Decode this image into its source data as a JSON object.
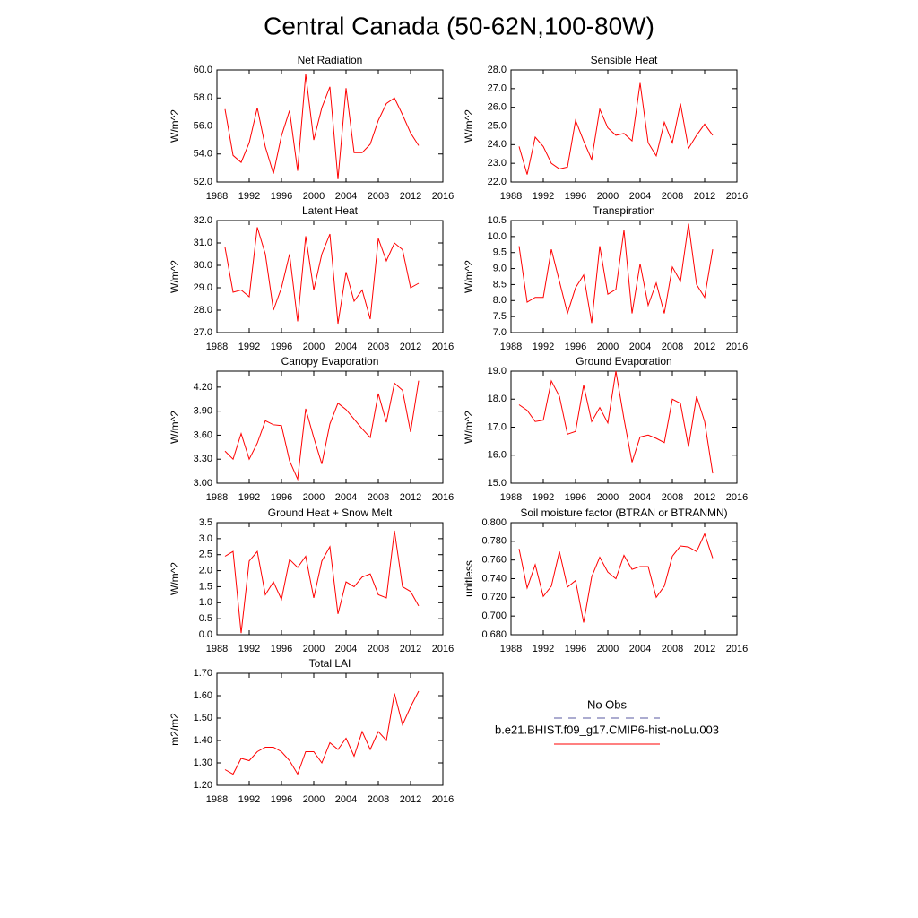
{
  "title": "Central Canada (50-62N,100-80W)",
  "legend": [
    {
      "name": "No Obs",
      "color": "#5a5aa0",
      "dashed": true
    },
    {
      "name": "b.e21.BHIST.f09_g17.CMIP6-hist-noLu.003",
      "color": "#ff0000",
      "dashed": false
    }
  ],
  "chart_data": [
    {
      "type": "line",
      "title": "Net Radiation",
      "ylabel": "W/m^2",
      "x": [
        1989,
        1990,
        1991,
        1992,
        1993,
        1994,
        1995,
        1996,
        1997,
        1998,
        1999,
        2000,
        2001,
        2002,
        2003,
        2004,
        2005,
        2006,
        2007,
        2008,
        2009,
        2010,
        2011,
        2012,
        2013
      ],
      "series": [
        {
          "color": "#ff0000",
          "values": [
            57.2,
            53.9,
            53.4,
            54.8,
            57.3,
            54.5,
            52.6,
            55.3,
            57.1,
            52.8,
            59.7,
            55.0,
            57.3,
            58.8,
            52.2,
            58.7,
            54.1,
            54.1,
            54.7,
            56.4,
            57.6,
            58.0,
            56.8,
            55.5,
            54.6
          ]
        }
      ],
      "xlim": [
        1988,
        2016
      ],
      "xticks": [
        1988,
        1992,
        1996,
        2000,
        2004,
        2008,
        2012,
        2016
      ],
      "ylim": [
        52,
        60
      ],
      "yticks": [
        {
          "value": 52,
          "label": "52.0"
        },
        {
          "value": 54,
          "label": "54.0"
        },
        {
          "value": 56,
          "label": "56.0"
        },
        {
          "value": 58,
          "label": "58.0"
        },
        {
          "value": 60,
          "label": "60.0"
        }
      ]
    },
    {
      "type": "line",
      "title": "Sensible Heat",
      "ylabel": "W/m^2",
      "x": [
        1989,
        1990,
        1991,
        1992,
        1993,
        1994,
        1995,
        1996,
        1997,
        1998,
        1999,
        2000,
        2001,
        2002,
        2003,
        2004,
        2005,
        2006,
        2007,
        2008,
        2009,
        2010,
        2011,
        2012,
        2013
      ],
      "series": [
        {
          "color": "#ff0000",
          "values": [
            23.9,
            22.4,
            24.4,
            23.9,
            23.0,
            22.7,
            22.8,
            25.3,
            24.2,
            23.2,
            25.9,
            24.9,
            24.5,
            24.6,
            24.2,
            27.3,
            24.1,
            23.4,
            25.2,
            24.1,
            26.2,
            23.8,
            24.5,
            25.1,
            24.5
          ]
        }
      ],
      "xlim": [
        1988,
        2016
      ],
      "xticks": [
        1988,
        1992,
        1996,
        2000,
        2004,
        2008,
        2012,
        2016
      ],
      "ylim": [
        22,
        28
      ],
      "yticks": [
        {
          "value": 22,
          "label": "22.0"
        },
        {
          "value": 23,
          "label": "23.0"
        },
        {
          "value": 24,
          "label": "24.0"
        },
        {
          "value": 25,
          "label": "25.0"
        },
        {
          "value": 26,
          "label": "26.0"
        },
        {
          "value": 27,
          "label": "27.0"
        },
        {
          "value": 28,
          "label": "28.0"
        }
      ]
    },
    {
      "type": "line",
      "title": "Latent Heat",
      "ylabel": "W/m^2",
      "x": [
        1989,
        1990,
        1991,
        1992,
        1993,
        1994,
        1995,
        1996,
        1997,
        1998,
        1999,
        2000,
        2001,
        2002,
        2003,
        2004,
        2005,
        2006,
        2007,
        2008,
        2009,
        2010,
        2011,
        2012,
        2013
      ],
      "series": [
        {
          "color": "#ff0000",
          "values": [
            30.8,
            28.8,
            28.9,
            28.6,
            31.7,
            30.5,
            28.0,
            29.0,
            30.5,
            27.5,
            31.3,
            28.9,
            30.5,
            31.4,
            27.4,
            29.7,
            28.4,
            28.9,
            27.6,
            31.2,
            30.2,
            31.0,
            30.7,
            29.0,
            29.2
          ]
        }
      ],
      "xlim": [
        1988,
        2016
      ],
      "xticks": [
        1988,
        1992,
        1996,
        2000,
        2004,
        2008,
        2012,
        2016
      ],
      "ylim": [
        27,
        32
      ],
      "yticks": [
        {
          "value": 27,
          "label": "27.0"
        },
        {
          "value": 28,
          "label": "28.0"
        },
        {
          "value": 29,
          "label": "29.0"
        },
        {
          "value": 30,
          "label": "30.0"
        },
        {
          "value": 31,
          "label": "31.0"
        },
        {
          "value": 32,
          "label": "32.0"
        }
      ]
    },
    {
      "type": "line",
      "title": "Transpiration",
      "ylabel": "W/m^2",
      "x": [
        1989,
        1990,
        1991,
        1992,
        1993,
        1994,
        1995,
        1996,
        1997,
        1998,
        1999,
        2000,
        2001,
        2002,
        2003,
        2004,
        2005,
        2006,
        2007,
        2008,
        2009,
        2010,
        2011,
        2012,
        2013
      ],
      "series": [
        {
          "color": "#ff0000",
          "values": [
            9.7,
            7.95,
            8.1,
            8.1,
            9.6,
            8.6,
            7.6,
            8.4,
            8.8,
            7.3,
            9.7,
            8.2,
            8.35,
            10.2,
            7.6,
            9.15,
            7.85,
            8.55,
            7.6,
            9.05,
            8.6,
            10.4,
            8.5,
            8.1,
            9.6
          ]
        }
      ],
      "xlim": [
        1988,
        2016
      ],
      "xticks": [
        1988,
        1992,
        1996,
        2000,
        2004,
        2008,
        2012,
        2016
      ],
      "ylim": [
        7,
        10.5
      ],
      "yticks": [
        {
          "value": 7,
          "label": "7.0"
        },
        7.5,
        {
          "value": 8,
          "label": "8.0"
        },
        8.5,
        {
          "value": 9,
          "label": "9.0"
        },
        9.5,
        {
          "value": 10,
          "label": "10.0"
        },
        10.5
      ]
    },
    {
      "type": "line",
      "title": "Canopy Evaporation",
      "ylabel": "W/m^2",
      "x": [
        1989,
        1990,
        1991,
        1992,
        1993,
        1994,
        1995,
        1996,
        1997,
        1998,
        1999,
        2000,
        2001,
        2002,
        2003,
        2004,
        2005,
        2006,
        2007,
        2008,
        2009,
        2010,
        2011,
        2012,
        2013
      ],
      "series": [
        {
          "color": "#ff0000",
          "values": [
            3.4,
            3.3,
            3.62,
            3.3,
            3.5,
            3.78,
            3.73,
            3.72,
            3.28,
            3.05,
            3.93,
            3.57,
            3.24,
            3.74,
            4.0,
            3.92,
            3.8,
            3.68,
            3.57,
            4.12,
            3.76,
            4.25,
            4.16,
            3.64,
            4.28
          ]
        }
      ],
      "xlim": [
        1988,
        2016
      ],
      "xticks": [
        1988,
        1992,
        1996,
        2000,
        2004,
        2008,
        2012,
        2016
      ],
      "ylim": [
        3.0,
        4.4
      ],
      "yticks": [
        {
          "value": 3.0,
          "label": "3.00"
        },
        {
          "value": 3.3,
          "label": "3.30"
        },
        {
          "value": 3.6,
          "label": "3.60"
        },
        {
          "value": 3.9,
          "label": "3.90"
        },
        {
          "value": 4.2,
          "label": "4.20"
        }
      ]
    },
    {
      "type": "line",
      "title": "Ground Evaporation",
      "ylabel": "W/m^2",
      "x": [
        1989,
        1990,
        1991,
        1992,
        1993,
        1994,
        1995,
        1996,
        1997,
        1998,
        1999,
        2000,
        2001,
        2002,
        2003,
        2004,
        2005,
        2006,
        2007,
        2008,
        2009,
        2010,
        2011,
        2012,
        2013
      ],
      "series": [
        {
          "color": "#ff0000",
          "values": [
            17.8,
            17.6,
            17.2,
            17.25,
            18.65,
            18.1,
            16.75,
            16.85,
            18.5,
            17.2,
            17.7,
            17.15,
            19.0,
            17.3,
            15.75,
            16.65,
            16.72,
            16.6,
            16.45,
            18.0,
            17.85,
            16.3,
            18.1,
            17.2,
            15.35
          ]
        }
      ],
      "xlim": [
        1988,
        2016
      ],
      "xticks": [
        1988,
        1992,
        1996,
        2000,
        2004,
        2008,
        2012,
        2016
      ],
      "ylim": [
        15,
        19
      ],
      "yticks": [
        {
          "value": 15,
          "label": "15.0"
        },
        {
          "value": 16,
          "label": "16.0"
        },
        {
          "value": 17,
          "label": "17.0"
        },
        {
          "value": 18,
          "label": "18.0"
        },
        {
          "value": 19,
          "label": "19.0"
        }
      ]
    },
    {
      "type": "line",
      "title": "Ground Heat + Snow Melt",
      "ylabel": "W/m^2",
      "x": [
        1989,
        1990,
        1991,
        1992,
        1993,
        1994,
        1995,
        1996,
        1997,
        1998,
        1999,
        2000,
        2001,
        2002,
        2003,
        2004,
        2005,
        2006,
        2007,
        2008,
        2009,
        2010,
        2011,
        2012,
        2013
      ],
      "series": [
        {
          "color": "#ff0000",
          "values": [
            2.45,
            2.6,
            0.05,
            2.3,
            2.6,
            1.25,
            1.65,
            1.1,
            2.35,
            2.1,
            2.45,
            1.15,
            2.3,
            2.75,
            0.65,
            1.65,
            1.5,
            1.8,
            1.9,
            1.25,
            1.15,
            3.25,
            1.5,
            1.35,
            0.9
          ]
        }
      ],
      "xlim": [
        1988,
        2016
      ],
      "xticks": [
        1988,
        1992,
        1996,
        2000,
        2004,
        2008,
        2012,
        2016
      ],
      "ylim": [
        0,
        3.5
      ],
      "yticks": [
        {
          "value": 0,
          "label": "0.0"
        },
        0.5,
        {
          "value": 1,
          "label": "1.0"
        },
        1.5,
        {
          "value": 2,
          "label": "2.0"
        },
        2.5,
        {
          "value": 3,
          "label": "3.0"
        },
        3.5
      ]
    },
    {
      "type": "line",
      "title": "Soil moisture factor (BTRAN or BTRANMN)",
      "ylabel": "unitless",
      "x": [
        1989,
        1990,
        1991,
        1992,
        1993,
        1994,
        1995,
        1996,
        1997,
        1998,
        1999,
        2000,
        2001,
        2002,
        2003,
        2004,
        2005,
        2006,
        2007,
        2008,
        2009,
        2010,
        2011,
        2012,
        2013
      ],
      "series": [
        {
          "color": "#ff0000",
          "values": [
            0.772,
            0.73,
            0.755,
            0.721,
            0.732,
            0.769,
            0.731,
            0.738,
            0.693,
            0.742,
            0.763,
            0.747,
            0.74,
            0.765,
            0.75,
            0.753,
            0.753,
            0.72,
            0.732,
            0.764,
            0.775,
            0.774,
            0.769,
            0.788,
            0.762
          ]
        }
      ],
      "xlim": [
        1988,
        2016
      ],
      "xticks": [
        1988,
        1992,
        1996,
        2000,
        2004,
        2008,
        2012,
        2016
      ],
      "ylim": [
        0.68,
        0.8
      ],
      "yticks": [
        {
          "value": 0.68,
          "label": "0.680"
        },
        {
          "value": 0.7,
          "label": "0.700"
        },
        {
          "value": 0.72,
          "label": "0.720"
        },
        {
          "value": 0.74,
          "label": "0.740"
        },
        {
          "value": 0.76,
          "label": "0.760"
        },
        {
          "value": 0.78,
          "label": "0.780"
        },
        {
          "value": 0.8,
          "label": "0.800"
        }
      ]
    },
    {
      "type": "line",
      "title": "Total LAI",
      "ylabel": "m2/m2",
      "x": [
        1989,
        1990,
        1991,
        1992,
        1993,
        1994,
        1995,
        1996,
        1997,
        1998,
        1999,
        2000,
        2001,
        2002,
        2003,
        2004,
        2005,
        2006,
        2007,
        2008,
        2009,
        2010,
        2011,
        2012,
        2013
      ],
      "series": [
        {
          "color": "#ff0000",
          "values": [
            1.27,
            1.25,
            1.32,
            1.31,
            1.35,
            1.37,
            1.37,
            1.35,
            1.31,
            1.25,
            1.35,
            1.35,
            1.3,
            1.39,
            1.36,
            1.41,
            1.33,
            1.44,
            1.36,
            1.44,
            1.4,
            1.61,
            1.47,
            1.55,
            1.62
          ]
        }
      ],
      "xlim": [
        1988,
        2016
      ],
      "xticks": [
        1988,
        1992,
        1996,
        2000,
        2004,
        2008,
        2012,
        2016
      ],
      "ylim": [
        1.2,
        1.7
      ],
      "yticks": [
        {
          "value": 1.2,
          "label": "1.20"
        },
        {
          "value": 1.3,
          "label": "1.30"
        },
        {
          "value": 1.4,
          "label": "1.40"
        },
        {
          "value": 1.5,
          "label": "1.50"
        },
        {
          "value": 1.6,
          "label": "1.60"
        },
        {
          "value": 1.7,
          "label": "1.70"
        }
      ]
    }
  ]
}
